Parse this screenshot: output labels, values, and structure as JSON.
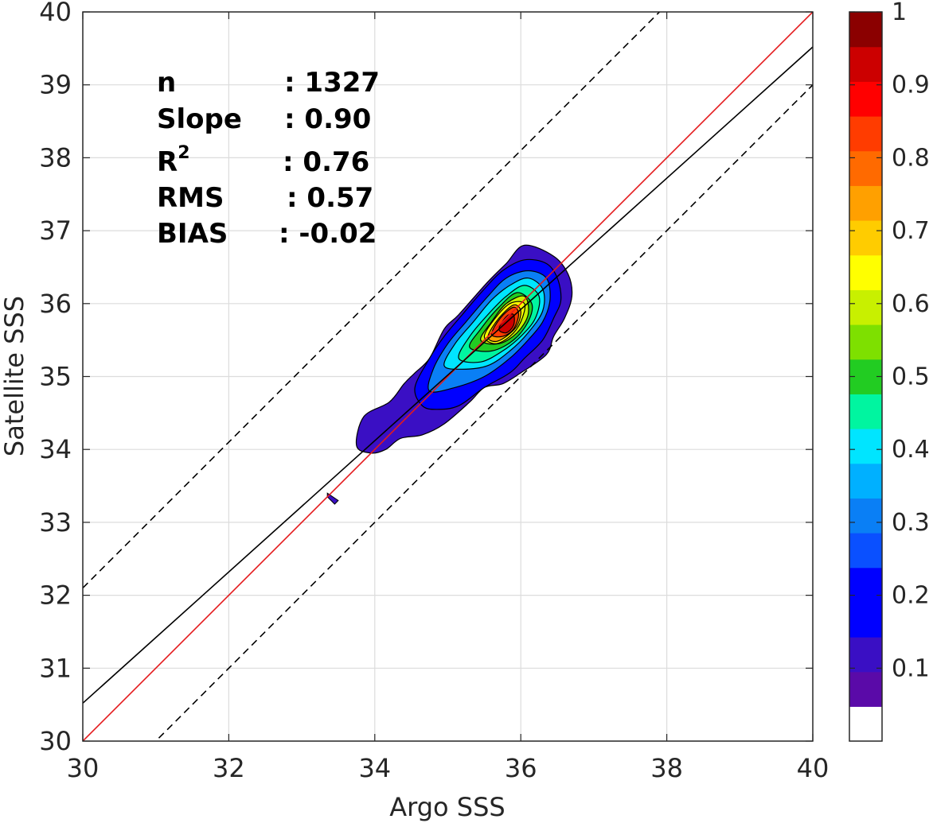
{
  "chart_data": {
    "type": "contourf",
    "xlabel": "Argo SSS",
    "ylabel": "Satellite SSS",
    "xlim": [
      30,
      40
    ],
    "ylim": [
      30,
      40
    ],
    "xticks": [
      30,
      32,
      34,
      36,
      38,
      40
    ],
    "yticks": [
      30,
      31,
      32,
      33,
      34,
      35,
      36,
      37,
      38,
      39,
      40
    ],
    "grid": true,
    "statistics": [
      {
        "label": "n",
        "value": ": 1327"
      },
      {
        "label": "Slope",
        "value": ": 0.90"
      },
      {
        "label": "R",
        "label_sup": "2",
        "value": ": 0.76"
      },
      {
        "label": "RMS",
        "value": ": 0.57"
      },
      {
        "label": "BIAS",
        "value": ": -0.02"
      }
    ],
    "lines": [
      {
        "role": "one-to-one",
        "color": "#e41a1c",
        "style": "solid",
        "slope": 1.0,
        "intercept": 0.0
      },
      {
        "role": "regression",
        "color": "#000000",
        "style": "solid",
        "slope": 0.9,
        "intercept": 3.52
      },
      {
        "role": "upper-bound",
        "color": "#000000",
        "style": "dashed",
        "slope": 1.0,
        "intercept": 2.1
      },
      {
        "role": "lower-bound",
        "color": "#000000",
        "style": "dashed",
        "slope": 1.0,
        "intercept": -1.0
      }
    ],
    "density_peak": {
      "x": 35.8,
      "y": 35.8,
      "value": 1.0
    },
    "contour_levels": [
      {
        "level": 0.05,
        "color": "#3a0fc4",
        "outline": [
          [
            33.75,
            34.05
          ],
          [
            33.85,
            34.45
          ],
          [
            34.2,
            34.65
          ],
          [
            34.4,
            34.9
          ],
          [
            34.55,
            35.05
          ],
          [
            34.75,
            35.25
          ],
          [
            34.95,
            35.65
          ],
          [
            35.15,
            35.85
          ],
          [
            35.55,
            36.3
          ],
          [
            35.8,
            36.55
          ],
          [
            36.05,
            36.8
          ],
          [
            36.45,
            36.65
          ],
          [
            36.65,
            36.4
          ],
          [
            36.7,
            36.1
          ],
          [
            36.6,
            35.8
          ],
          [
            36.45,
            35.55
          ],
          [
            36.35,
            35.3
          ],
          [
            36.0,
            35.05
          ],
          [
            35.75,
            34.9
          ],
          [
            35.5,
            34.85
          ],
          [
            35.3,
            34.65
          ],
          [
            34.95,
            34.35
          ],
          [
            34.65,
            34.2
          ],
          [
            34.35,
            34.15
          ],
          [
            34.15,
            34.0
          ],
          [
            33.95,
            33.95
          ]
        ]
      },
      {
        "level": 0.1,
        "color": "#0000ff",
        "outline": [
          [
            34.65,
            34.6
          ],
          [
            34.55,
            34.85
          ],
          [
            34.75,
            35.25
          ],
          [
            34.95,
            35.55
          ],
          [
            35.2,
            35.85
          ],
          [
            35.5,
            36.2
          ],
          [
            35.75,
            36.45
          ],
          [
            36.05,
            36.6
          ],
          [
            36.35,
            36.55
          ],
          [
            36.5,
            36.35
          ],
          [
            36.55,
            36.05
          ],
          [
            36.45,
            35.8
          ],
          [
            36.3,
            35.5
          ],
          [
            36.05,
            35.25
          ],
          [
            35.85,
            35.05
          ],
          [
            35.5,
            34.85
          ],
          [
            35.15,
            34.6
          ],
          [
            34.85,
            34.55
          ]
        ]
      },
      {
        "level": 0.2,
        "color": "#0a7ff5",
        "outline": [
          [
            34.75,
            34.8
          ],
          [
            34.8,
            35.1
          ],
          [
            35.0,
            35.45
          ],
          [
            35.25,
            35.75
          ],
          [
            35.55,
            36.1
          ],
          [
            35.8,
            36.35
          ],
          [
            36.1,
            36.45
          ],
          [
            36.35,
            36.35
          ],
          [
            36.4,
            36.05
          ],
          [
            36.3,
            35.75
          ],
          [
            36.1,
            35.5
          ],
          [
            35.85,
            35.25
          ],
          [
            35.5,
            35.0
          ],
          [
            35.1,
            34.85
          ]
        ]
      },
      {
        "level": 0.3,
        "color": "#00e5ff",
        "outline": [
          [
            34.95,
            35.15
          ],
          [
            35.1,
            35.45
          ],
          [
            35.35,
            35.75
          ],
          [
            35.6,
            36.05
          ],
          [
            35.85,
            36.25
          ],
          [
            36.1,
            36.35
          ],
          [
            36.3,
            36.2
          ],
          [
            36.3,
            35.9
          ],
          [
            36.1,
            35.6
          ],
          [
            35.85,
            35.35
          ],
          [
            35.55,
            35.15
          ],
          [
            35.2,
            35.1
          ]
        ]
      },
      {
        "level": 0.4,
        "color": "#00f5a0",
        "outline": [
          [
            35.15,
            35.25
          ],
          [
            35.3,
            35.55
          ],
          [
            35.55,
            35.85
          ],
          [
            35.8,
            36.1
          ],
          [
            36.05,
            36.25
          ],
          [
            36.25,
            36.1
          ],
          [
            36.2,
            35.8
          ],
          [
            36.0,
            35.55
          ],
          [
            35.75,
            35.35
          ],
          [
            35.45,
            35.2
          ]
        ]
      },
      {
        "level": 0.5,
        "color": "#22cc22",
        "outline": [
          [
            35.3,
            35.4
          ],
          [
            35.45,
            35.65
          ],
          [
            35.7,
            35.95
          ],
          [
            35.95,
            36.15
          ],
          [
            36.15,
            36.0
          ],
          [
            36.1,
            35.75
          ],
          [
            35.9,
            35.5
          ],
          [
            35.6,
            35.35
          ]
        ]
      },
      {
        "level": 0.6,
        "color": "#c8f000",
        "outline": [
          [
            35.45,
            35.5
          ],
          [
            35.6,
            35.75
          ],
          [
            35.8,
            36.0
          ],
          [
            36.05,
            36.1
          ],
          [
            36.1,
            35.85
          ],
          [
            35.95,
            35.6
          ],
          [
            35.7,
            35.45
          ]
        ]
      },
      {
        "level": 0.65,
        "color": "#ffff00",
        "outline": [
          [
            35.5,
            35.55
          ],
          [
            35.65,
            35.8
          ],
          [
            35.85,
            36.0
          ],
          [
            36.05,
            36.0
          ],
          [
            36.0,
            35.75
          ],
          [
            35.85,
            35.55
          ],
          [
            35.65,
            35.45
          ]
        ]
      },
      {
        "level": 0.7,
        "color": "#ffa000",
        "outline": [
          [
            35.55,
            35.55
          ],
          [
            35.7,
            35.8
          ],
          [
            35.9,
            35.98
          ],
          [
            36.0,
            35.9
          ],
          [
            35.95,
            35.7
          ],
          [
            35.8,
            35.55
          ],
          [
            35.65,
            35.48
          ]
        ]
      },
      {
        "level": 0.8,
        "color": "#ff3c00",
        "outline": [
          [
            35.6,
            35.58
          ],
          [
            35.72,
            35.8
          ],
          [
            35.9,
            35.95
          ],
          [
            35.97,
            35.85
          ],
          [
            35.9,
            35.65
          ],
          [
            35.75,
            35.55
          ]
        ]
      },
      {
        "level": 0.9,
        "color": "#cc0000",
        "outline": [
          [
            35.7,
            35.65
          ],
          [
            35.8,
            35.82
          ],
          [
            35.9,
            35.85
          ],
          [
            35.9,
            35.7
          ],
          [
            35.8,
            35.6
          ]
        ]
      }
    ],
    "outlier_patch": {
      "color": "#3a0fc4",
      "outline": [
        [
          33.35,
          33.4
        ],
        [
          33.5,
          33.3
        ],
        [
          33.45,
          33.25
        ],
        [
          33.35,
          33.35
        ]
      ]
    },
    "colorbar": {
      "min": 0,
      "max": 1,
      "tick_values": [
        0.1,
        0.2,
        0.3,
        0.4,
        0.5,
        0.6,
        0.7,
        0.8,
        0.9,
        1
      ],
      "tick_labels": [
        "0.1",
        "0.2",
        "0.3",
        "0.4",
        "0.5",
        "0.6",
        "0.7",
        "0.8",
        "0.9",
        "1"
      ],
      "colors": [
        "#ffffff",
        "#5a0aa8",
        "#3a0fc4",
        "#0000ff",
        "#0000ff",
        "#0a50ff",
        "#0a7ff5",
        "#00b0ff",
        "#00e5ff",
        "#00f5a0",
        "#22cc22",
        "#7ee000",
        "#c8f000",
        "#ffff00",
        "#ffcc00",
        "#ffa000",
        "#ff6a00",
        "#ff3c00",
        "#ff0000",
        "#cc0000",
        "#8b0000"
      ]
    }
  }
}
